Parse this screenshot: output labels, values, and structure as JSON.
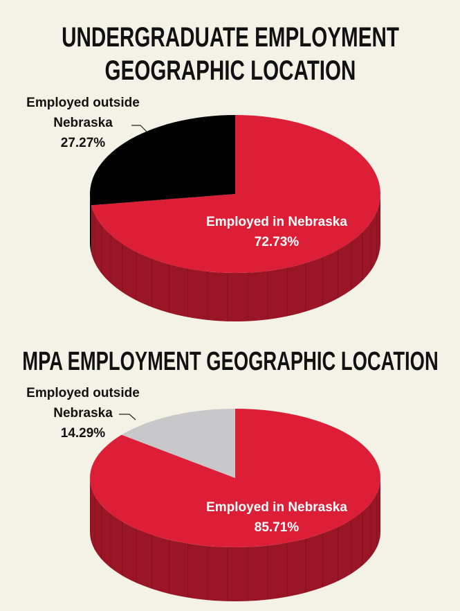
{
  "chart_data": [
    {
      "type": "pie",
      "title": "UNDERGRADUATE EMPLOYMENT GEOGRAPHIC LOCATION",
      "categories": [
        "Employed in Nebraska",
        "Employed outside Nebraska"
      ],
      "values": [
        72.73,
        27.27
      ],
      "value_labels": [
        "72.73%",
        "27.27%"
      ],
      "colors": [
        "#dc1f36",
        "#000000"
      ],
      "three_d": true
    },
    {
      "type": "pie",
      "title": "MPA EMPLOYMENT GEOGRAPHIC LOCATION",
      "categories": [
        "Employed in Nebraska",
        "Employed outside Nebraska"
      ],
      "values": [
        85.71,
        14.29
      ],
      "value_labels": [
        "85.71%",
        "14.29%"
      ],
      "colors": [
        "#dc1f36",
        "#c8c8ca"
      ],
      "three_d": true
    }
  ]
}
